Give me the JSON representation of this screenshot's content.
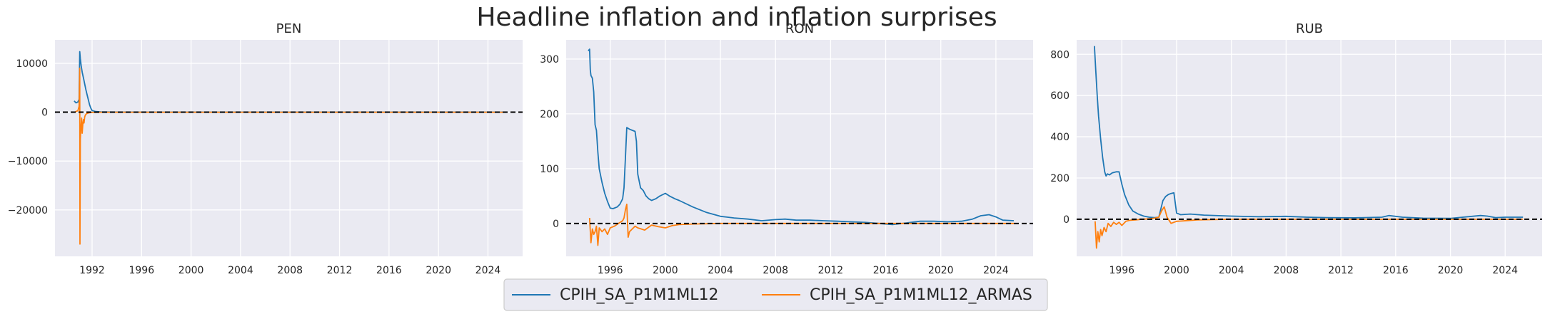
{
  "title": "Headline inflation and inflation surprises",
  "legend": {
    "items": [
      {
        "label": "CPIH_SA_P1M1ML12",
        "color": "#1f77b4"
      },
      {
        "label": "CPIH_SA_P1M1ML12_ARMAS",
        "color": "#ff7f0e"
      }
    ]
  },
  "colors": {
    "panel_bg": "#eaeaf2",
    "grid": "#ffffff",
    "zero_line": "#000000",
    "series_1": "#1f77b4",
    "series_2": "#ff7f0e"
  },
  "chart_data": [
    {
      "type": "line",
      "title": "PEN",
      "xlabel": "",
      "ylabel": "",
      "xlim": [
        1989.0,
        2026.8
      ],
      "ylim": [
        -29500,
        14800
      ],
      "xticks": [
        1992,
        1996,
        2000,
        2004,
        2008,
        2012,
        2016,
        2020,
        2024
      ],
      "yticks": [
        10000,
        0,
        -10000,
        -20000
      ],
      "ytick_labels": [
        "10000",
        "0",
        "−10000",
        "−20000"
      ],
      "grid": true,
      "zero_line": true,
      "series": [
        {
          "name": "CPIH_SA_P1M1ML12",
          "color": "#1f77b4",
          "x": [
            1990.55,
            1990.7,
            1990.85,
            1990.95,
            1991.0,
            1991.05,
            1991.12,
            1991.2,
            1991.3,
            1991.4,
            1991.5,
            1991.6,
            1991.7,
            1991.8,
            1991.9,
            1992.0,
            1992.3,
            1992.7,
            1993.2,
            1994,
            1996,
            2000,
            2005,
            2010,
            2015,
            2020,
            2025.5
          ],
          "y": [
            2300,
            1900,
            2100,
            2600,
            12400,
            11000,
            9500,
            8200,
            7000,
            5800,
            4600,
            3500,
            2500,
            1500,
            800,
            350,
            120,
            60,
            40,
            20,
            10,
            4,
            2,
            3,
            3,
            2,
            2
          ]
        },
        {
          "name": "CPIH_SA_P1M1ML12_ARMAS",
          "color": "#ff7f0e",
          "x": [
            1990.6,
            1990.75,
            1990.85,
            1990.95,
            1991.0,
            1991.02,
            1991.05,
            1991.1,
            1991.15,
            1991.2,
            1991.25,
            1991.3,
            1991.35,
            1991.4,
            1991.45,
            1991.55,
            1991.7,
            1991.9,
            1992.3,
            1993,
            1995,
            2000,
            2010,
            2020,
            2025.5
          ],
          "y": [
            0,
            200,
            300,
            1200,
            9000,
            -27000,
            -5500,
            -3000,
            -1200,
            -4300,
            -2500,
            -1500,
            -2200,
            -1000,
            -600,
            -300,
            -150,
            -50,
            -20,
            0,
            0,
            0,
            0,
            0,
            0
          ]
        }
      ]
    },
    {
      "type": "line",
      "title": "RON",
      "xlabel": "",
      "ylabel": "",
      "xlim": [
        1992.8,
        2026.7
      ],
      "ylim": [
        -60,
        335
      ],
      "xticks": [
        1996,
        2000,
        2004,
        2008,
        2012,
        2016,
        2020,
        2024
      ],
      "yticks": [
        300,
        200,
        100,
        0
      ],
      "ytick_labels": [
        "300",
        "200",
        "100",
        "0"
      ],
      "grid": true,
      "zero_line": true,
      "series": [
        {
          "name": "CPIH_SA_P1M1ML12",
          "color": "#1f77b4",
          "x": [
            1994.4,
            1994.5,
            1994.55,
            1994.6,
            1994.7,
            1994.8,
            1994.9,
            1995.0,
            1995.1,
            1995.2,
            1995.4,
            1995.6,
            1995.8,
            1996.0,
            1996.2,
            1996.5,
            1996.7,
            1996.9,
            1997.0,
            1997.1,
            1997.2,
            1997.4,
            1997.6,
            1997.8,
            1997.9,
            1998.0,
            1998.2,
            1998.4,
            1998.6,
            1998.8,
            1999.0,
            1999.3,
            1999.6,
            2000.0,
            2000.3,
            2000.7,
            2001.0,
            2002.0,
            2003.0,
            2004.0,
            2005.0,
            2006.0,
            2007.0,
            2008.0,
            2008.7,
            2009.5,
            2010.5,
            2011.5,
            2012.5,
            2013.5,
            2014.5,
            2015.5,
            2016.5,
            2017.5,
            2018.5,
            2019.5,
            2020.5,
            2021.5,
            2022.3,
            2022.9,
            2023.5,
            2024.0,
            2024.5,
            2025.3
          ],
          "y": [
            315,
            318,
            280,
            270,
            265,
            240,
            180,
            170,
            130,
            100,
            75,
            55,
            40,
            28,
            27,
            30,
            35,
            45,
            65,
            120,
            175,
            172,
            170,
            168,
            150,
            90,
            65,
            60,
            50,
            45,
            42,
            45,
            50,
            55,
            50,
            45,
            42,
            30,
            20,
            13,
            10,
            8,
            5,
            7,
            8,
            6,
            6,
            5,
            4,
            3,
            2,
            0,
            -2,
            1,
            4,
            4,
            3,
            4,
            8,
            14,
            16,
            12,
            6,
            5
          ]
        },
        {
          "name": "CPIH_SA_P1M1ML12_ARMAS",
          "color": "#ff7f0e",
          "x": [
            1994.5,
            1994.6,
            1994.7,
            1994.8,
            1994.9,
            1995.0,
            1995.1,
            1995.2,
            1995.4,
            1995.6,
            1995.8,
            1996.0,
            1996.3,
            1996.6,
            1996.9,
            1997.0,
            1997.1,
            1997.2,
            1997.3,
            1997.4,
            1997.6,
            1997.8,
            1998.0,
            1998.5,
            1999.0,
            1999.5,
            2000.0,
            2000.5,
            2001.0,
            2002.0,
            2004.0,
            2008.0,
            2012.0,
            2016.0,
            2020.0,
            2025.3
          ],
          "y": [
            10,
            -35,
            -10,
            -20,
            -15,
            -5,
            -40,
            -8,
            -15,
            -10,
            -20,
            -8,
            -5,
            0,
            5,
            10,
            25,
            35,
            -25,
            -15,
            -10,
            -5,
            -8,
            -12,
            -3,
            -6,
            -8,
            -4,
            -2,
            -1,
            0,
            0,
            0,
            0,
            0,
            0
          ]
        }
      ]
    },
    {
      "type": "line",
      "title": "RUB",
      "xlabel": "",
      "ylabel": "",
      "xlim": [
        1992.7,
        2026.7
      ],
      "ylim": [
        -180,
        870
      ],
      "xticks": [
        1996,
        2000,
        2004,
        2008,
        2012,
        2016,
        2020,
        2024
      ],
      "yticks": [
        800,
        600,
        400,
        200,
        0
      ],
      "ytick_labels": [
        "800",
        "600",
        "400",
        "200",
        "0"
      ],
      "grid": true,
      "zero_line": true,
      "series": [
        {
          "name": "CPIH_SA_P1M1ML12",
          "color": "#1f77b4",
          "x": [
            1994.0,
            1994.1,
            1994.2,
            1994.3,
            1994.45,
            1994.6,
            1994.75,
            1994.85,
            1994.95,
            1995.1,
            1995.3,
            1995.6,
            1995.8,
            1996.0,
            1996.2,
            1996.5,
            1996.8,
            1997.2,
            1997.6,
            1998.0,
            1998.4,
            1998.7,
            1999.0,
            1999.2,
            1999.4,
            1999.6,
            1999.8,
            2000.0,
            2000.3,
            2001.0,
            2002.0,
            2004.0,
            2006.0,
            2008.0,
            2009.5,
            2011.0,
            2013.0,
            2015.0,
            2015.5,
            2016.5,
            2018.0,
            2020.0,
            2022.2,
            2022.7,
            2023.3,
            2024.0,
            2025.3
          ],
          "y": [
            840,
            720,
            600,
            500,
            390,
            300,
            230,
            210,
            220,
            215,
            225,
            230,
            230,
            170,
            120,
            70,
            40,
            25,
            15,
            10,
            8,
            10,
            90,
            110,
            120,
            125,
            128,
            30,
            22,
            25,
            20,
            15,
            12,
            14,
            10,
            8,
            7,
            10,
            18,
            10,
            5,
            4,
            18,
            15,
            8,
            10,
            10
          ]
        },
        {
          "name": "CPIH_SA_P1M1ML12_ARMAS",
          "color": "#ff7f0e",
          "x": [
            1994.05,
            1994.15,
            1994.25,
            1994.35,
            1994.45,
            1994.55,
            1994.7,
            1994.85,
            1995.0,
            1995.2,
            1995.4,
            1995.6,
            1995.8,
            1996.0,
            1996.3,
            1996.6,
            1997.0,
            1997.5,
            1998.0,
            1998.4,
            1998.7,
            1998.9,
            1999.1,
            1999.3,
            1999.6,
            2000.0,
            2000.5,
            2001.5,
            2004.0,
            2010.0,
            2020.0,
            2025.3
          ],
          "y": [
            -10,
            -140,
            -60,
            -110,
            -50,
            -80,
            -40,
            -60,
            -20,
            -35,
            -15,
            -25,
            -15,
            -30,
            -10,
            -5,
            -3,
            0,
            2,
            5,
            10,
            40,
            60,
            10,
            -20,
            -10,
            -8,
            -3,
            0,
            0,
            0,
            0
          ]
        }
      ]
    }
  ]
}
